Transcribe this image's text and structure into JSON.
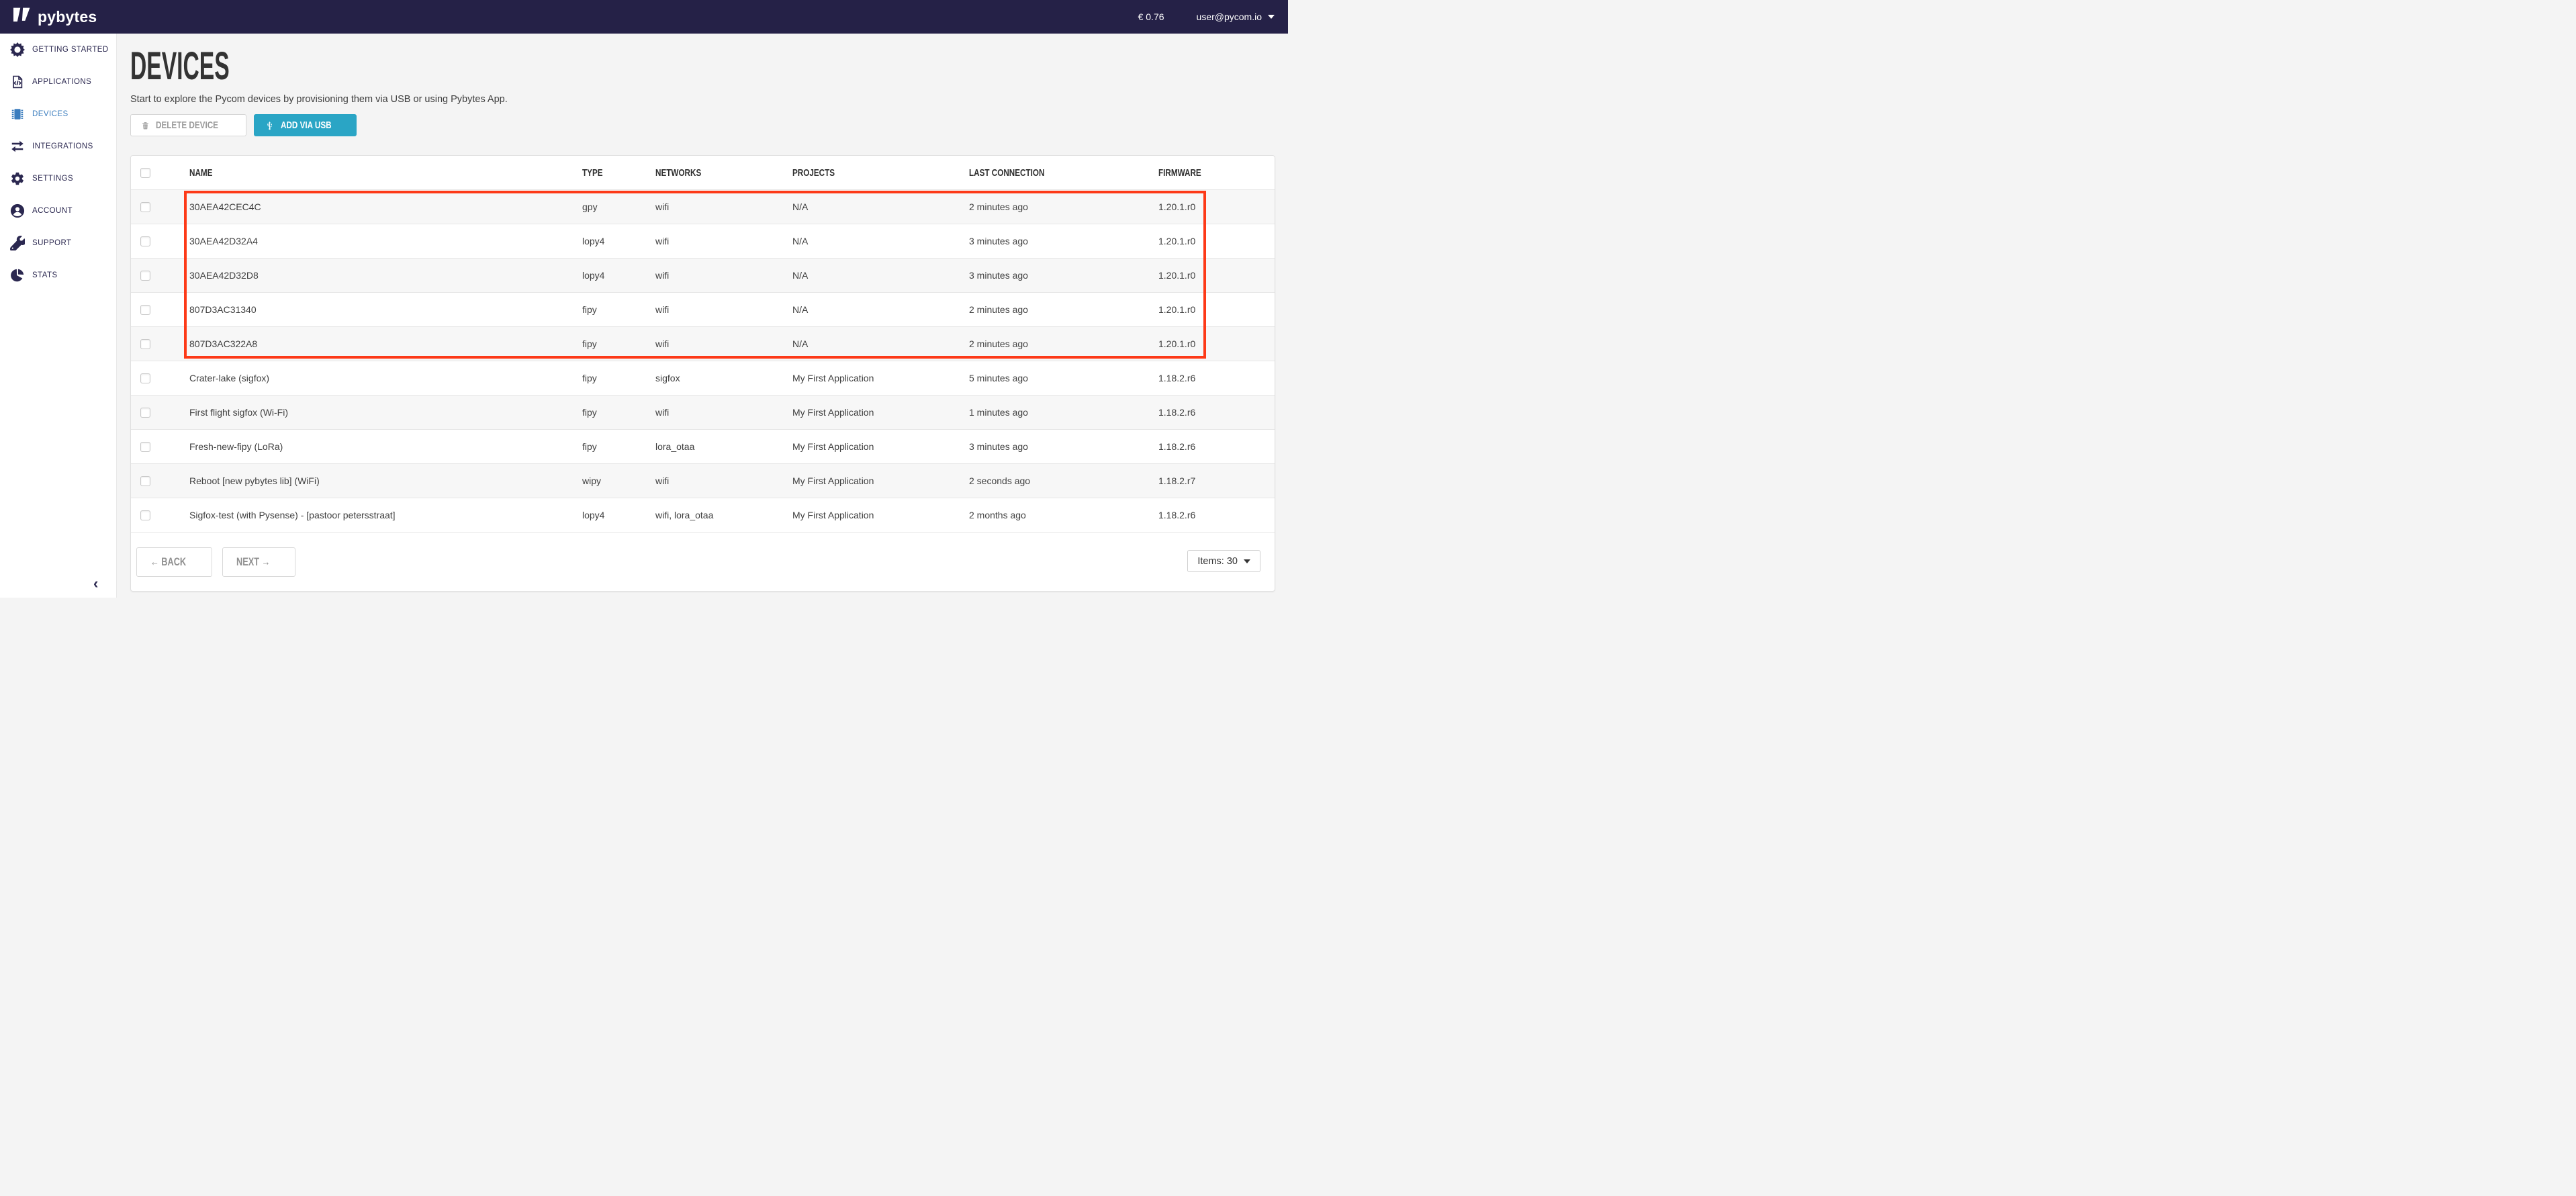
{
  "topbar": {
    "logo_text": "pybytes",
    "balance": "€ 0.76",
    "user_email": "user@pycom.io"
  },
  "sidebar": {
    "active_index": 2,
    "collapse_glyph": "‹",
    "items": [
      {
        "label": "GETTING STARTED",
        "icon": "getting-started"
      },
      {
        "label": "APPLICATIONS",
        "icon": "applications"
      },
      {
        "label": "DEVICES",
        "icon": "devices"
      },
      {
        "label": "INTEGRATIONS",
        "icon": "integrations"
      },
      {
        "label": "SETTINGS",
        "icon": "settings"
      },
      {
        "label": "ACCOUNT",
        "icon": "account"
      },
      {
        "label": "SUPPORT",
        "icon": "support"
      },
      {
        "label": "STATS",
        "icon": "stats"
      }
    ]
  },
  "page": {
    "title": "DEVICES",
    "subtitle": "Start to explore the Pycom devices by provisioning them via USB or using Pybytes App."
  },
  "toolbar": {
    "delete_label": "DELETE DEVICE",
    "add_label": "ADD VIA USB"
  },
  "table": {
    "headers": [
      "NAME",
      "TYPE",
      "NETWORKS",
      "PROJECTS",
      "LAST CONNECTION",
      "FIRMWARE"
    ],
    "rows": [
      {
        "name": "30AEA42CEC4C",
        "type": "gpy",
        "networks": "wifi",
        "projects": "N/A",
        "last_connection": "2 minutes ago",
        "firmware": "1.20.1.r0",
        "highlighted": true
      },
      {
        "name": "30AEA42D32A4",
        "type": "lopy4",
        "networks": "wifi",
        "projects": "N/A",
        "last_connection": "3 minutes ago",
        "firmware": "1.20.1.r0",
        "highlighted": true
      },
      {
        "name": "30AEA42D32D8",
        "type": "lopy4",
        "networks": "wifi",
        "projects": "N/A",
        "last_connection": "3 minutes ago",
        "firmware": "1.20.1.r0",
        "highlighted": true
      },
      {
        "name": "807D3AC31340",
        "type": "fipy",
        "networks": "wifi",
        "projects": "N/A",
        "last_connection": "2 minutes ago",
        "firmware": "1.20.1.r0",
        "highlighted": true
      },
      {
        "name": "807D3AC322A8",
        "type": "fipy",
        "networks": "wifi",
        "projects": "N/A",
        "last_connection": "2 minutes ago",
        "firmware": "1.20.1.r0",
        "highlighted": true
      },
      {
        "name": "Crater-lake (sigfox)",
        "type": "fipy",
        "networks": "sigfox",
        "projects": "My First Application",
        "last_connection": "5 minutes ago",
        "firmware": "1.18.2.r6",
        "highlighted": false
      },
      {
        "name": "First flight sigfox (Wi-Fi)",
        "type": "fipy",
        "networks": "wifi",
        "projects": "My First Application",
        "last_connection": "1 minutes ago",
        "firmware": "1.18.2.r6",
        "highlighted": false
      },
      {
        "name": "Fresh-new-fipy (LoRa)",
        "type": "fipy",
        "networks": "lora_otaa",
        "projects": "My First Application",
        "last_connection": "3 minutes ago",
        "firmware": "1.18.2.r6",
        "highlighted": false
      },
      {
        "name": "Reboot [new pybytes lib] (WiFi)",
        "type": "wipy",
        "networks": "wifi",
        "projects": "My First Application",
        "last_connection": "2 seconds ago",
        "firmware": "1.18.2.r7",
        "highlighted": false
      },
      {
        "name": "Sigfox-test (with Pysense) - [pastoor petersstraat]",
        "type": "lopy4",
        "networks": "wifi, lora_otaa",
        "projects": "My First Application",
        "last_connection": "2 months ago",
        "firmware": "1.18.2.r6",
        "highlighted": false
      }
    ]
  },
  "pagination": {
    "back_label": "← BACK",
    "next_label": "NEXT →",
    "items_label": "Items: 30"
  },
  "colors": {
    "topbar_bg": "#252147",
    "sidebar_active": "#3b7dbe",
    "accent_teal": "#2aa5c5",
    "highlight_red": "#fd3a18"
  }
}
